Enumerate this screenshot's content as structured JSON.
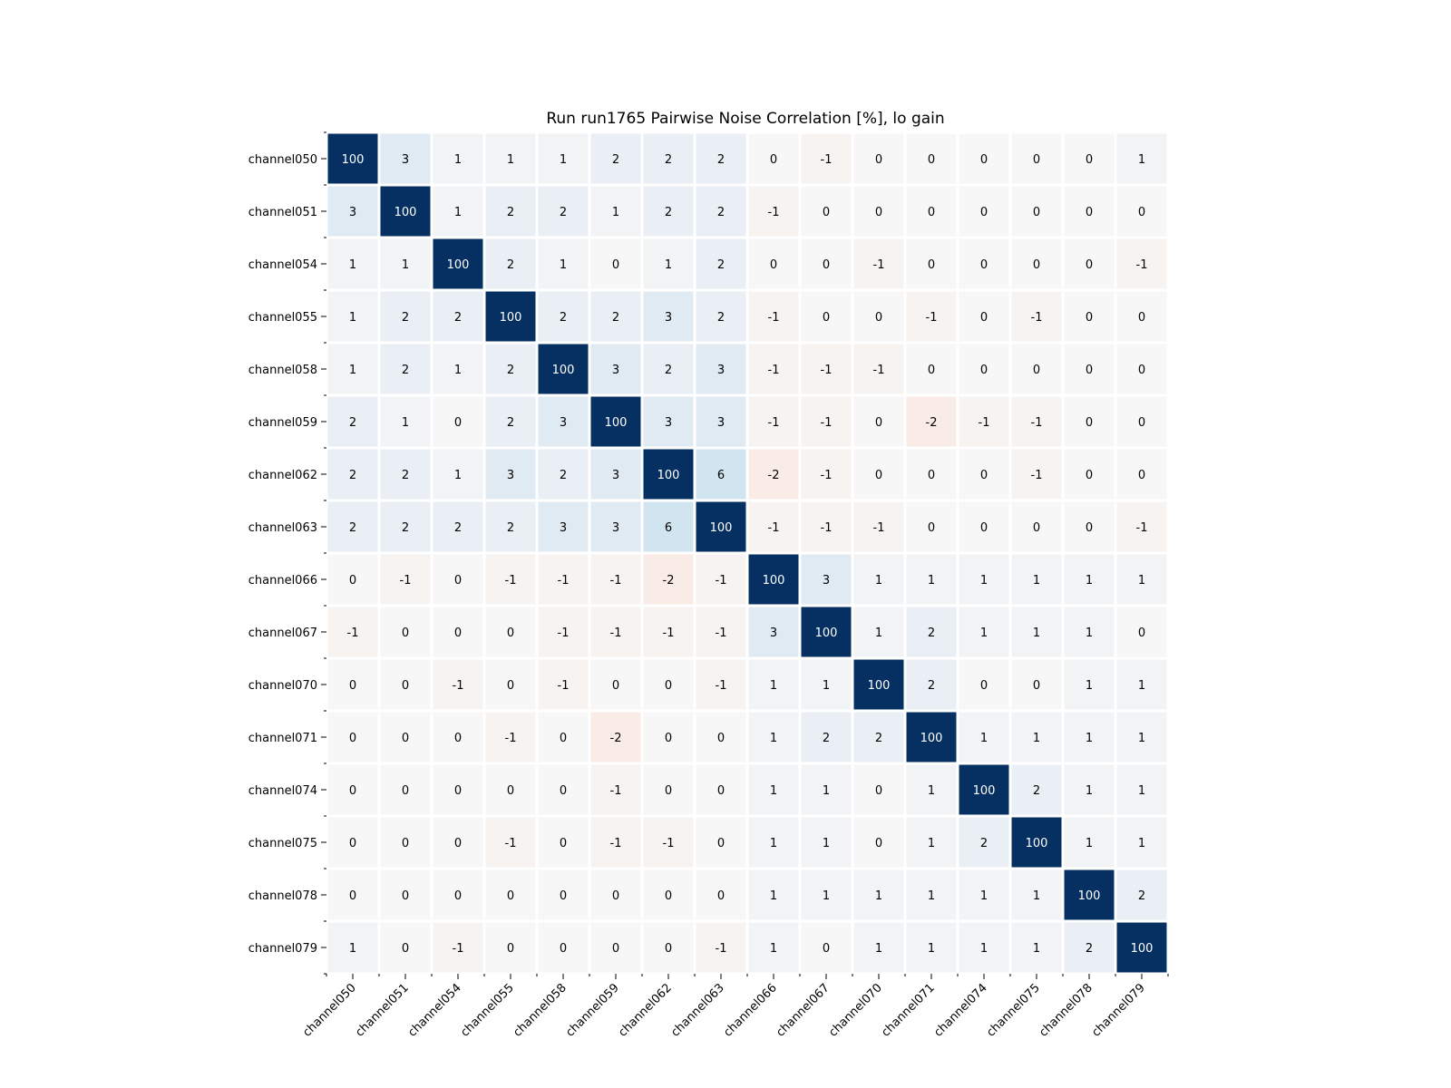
{
  "chart_data": {
    "type": "heatmap",
    "title": "Run run1765 Pairwise Noise Correlation [%], lo gain",
    "xlabel": "",
    "ylabel": "",
    "labels": [
      "channel050",
      "channel051",
      "channel054",
      "channel055",
      "channel058",
      "channel059",
      "channel062",
      "channel063",
      "channel066",
      "channel067",
      "channel070",
      "channel071",
      "channel074",
      "channel075",
      "channel078",
      "channel079"
    ],
    "values": [
      [
        100,
        3,
        1,
        1,
        1,
        2,
        2,
        2,
        0,
        -1,
        0,
        0,
        0,
        0,
        0,
        1
      ],
      [
        3,
        100,
        1,
        2,
        2,
        1,
        2,
        2,
        -1,
        0,
        0,
        0,
        0,
        0,
        0,
        0
      ],
      [
        1,
        1,
        100,
        2,
        1,
        0,
        1,
        2,
        0,
        0,
        -1,
        0,
        0,
        0,
        0,
        -1
      ],
      [
        1,
        2,
        2,
        100,
        2,
        2,
        3,
        2,
        -1,
        0,
        0,
        -1,
        0,
        -1,
        0,
        0
      ],
      [
        1,
        2,
        1,
        2,
        100,
        3,
        2,
        3,
        -1,
        -1,
        -1,
        0,
        0,
        0,
        0,
        0
      ],
      [
        2,
        1,
        0,
        2,
        3,
        100,
        3,
        3,
        -1,
        -1,
        0,
        -2,
        -1,
        -1,
        0,
        0
      ],
      [
        2,
        2,
        1,
        3,
        2,
        3,
        100,
        6,
        -2,
        -1,
        0,
        0,
        0,
        -1,
        0,
        0
      ],
      [
        2,
        2,
        2,
        2,
        3,
        3,
        6,
        100,
        -1,
        -1,
        -1,
        0,
        0,
        0,
        0,
        -1
      ],
      [
        0,
        -1,
        0,
        -1,
        -1,
        -1,
        -2,
        -1,
        100,
        3,
        1,
        1,
        1,
        1,
        1,
        1
      ],
      [
        -1,
        0,
        0,
        0,
        -1,
        -1,
        -1,
        -1,
        3,
        100,
        1,
        2,
        1,
        1,
        1,
        0
      ],
      [
        0,
        0,
        -1,
        0,
        -1,
        0,
        0,
        -1,
        1,
        1,
        100,
        2,
        0,
        0,
        1,
        1
      ],
      [
        0,
        0,
        0,
        -1,
        0,
        -2,
        0,
        0,
        1,
        2,
        2,
        100,
        1,
        1,
        1,
        1
      ],
      [
        0,
        0,
        0,
        0,
        0,
        -1,
        0,
        0,
        1,
        1,
        0,
        1,
        100,
        2,
        1,
        1
      ],
      [
        0,
        0,
        0,
        -1,
        0,
        -1,
        -1,
        0,
        1,
        1,
        0,
        1,
        2,
        100,
        1,
        1
      ],
      [
        0,
        0,
        0,
        0,
        0,
        0,
        0,
        0,
        1,
        1,
        1,
        1,
        1,
        1,
        100,
        2
      ],
      [
        1,
        0,
        -1,
        0,
        0,
        0,
        0,
        -1,
        1,
        0,
        1,
        1,
        1,
        1,
        2,
        100
      ]
    ],
    "colormap": "RdBu diverging (red negative, blue positive)",
    "vmin": -100,
    "vmax": 100,
    "colors": {
      "max": "#053061",
      "neutral": "#f7f7f7",
      "negative": "#67001f",
      "text_dark": "#000000",
      "text_light": "#ffffff",
      "grid": "#ffffff"
    }
  }
}
